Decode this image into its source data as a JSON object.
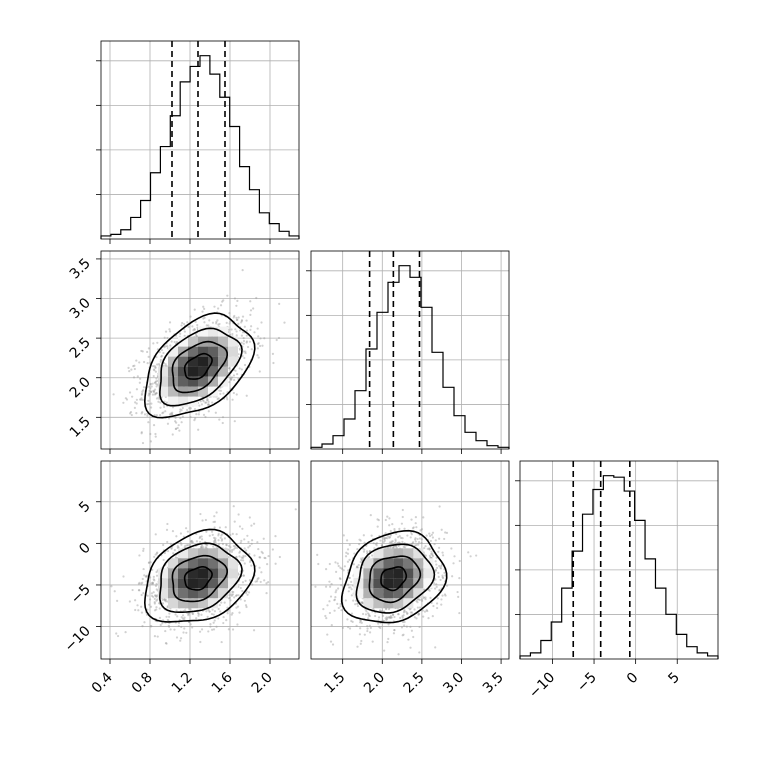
{
  "chart_data": {
    "type": "corner",
    "parameters": [
      {
        "range": [
          0.31,
          2.29
        ],
        "ticks": [
          "0.4",
          "0.8",
          "1.2",
          "1.6",
          "2.0"
        ],
        "tick_values": [
          0.4,
          0.8,
          1.2,
          1.6,
          2.0
        ],
        "quantiles": [
          1.02,
          1.28,
          1.55
        ]
      },
      {
        "range": [
          1.1,
          3.6
        ],
        "ticks": [
          "1.5",
          "2.0",
          "2.5",
          "3.0",
          "3.5"
        ],
        "tick_values": [
          1.5,
          2.0,
          2.5,
          3.0,
          3.5
        ],
        "quantiles": [
          1.84,
          2.14,
          2.47
        ]
      },
      {
        "range": [
          -13.9,
          9.9
        ],
        "ticks": [
          "−10",
          "−5",
          "0",
          "5"
        ],
        "tick_values": [
          -10,
          -5,
          0,
          5
        ],
        "quantiles": [
          -7.5,
          -4.2,
          -0.7
        ]
      }
    ],
    "histograms": [
      {
        "edges_min": 0.31,
        "edges_max": 2.29,
        "counts": [
          2,
          3,
          6,
          14,
          25,
          43,
          60,
          80,
          102,
          112,
          119,
          107,
          92,
          73,
          47,
          32,
          17,
          10,
          5,
          2
        ]
      },
      {
        "edges_min": 1.1,
        "edges_max": 3.6,
        "counts": [
          1,
          3,
          8,
          18,
          35,
          60,
          82,
          100,
          110,
          103,
          85,
          58,
          37,
          20,
          10,
          5,
          2,
          1
        ]
      },
      {
        "edges_min": -13.9,
        "edges_max": 9.9,
        "counts": [
          2,
          4,
          12,
          24,
          46,
          70,
          94,
          110,
          119,
          118,
          109,
          90,
          65,
          46,
          29,
          16,
          8,
          4,
          2
        ]
      }
    ],
    "pairs": [
      {
        "x_param": 0,
        "y_param": 1,
        "mean": [
          1.28,
          2.14
        ],
        "sd": [
          0.27,
          0.32
        ],
        "rho": 0.42
      },
      {
        "x_param": 0,
        "y_param": 2,
        "mean": [
          1.28,
          -4.2
        ],
        "sd": [
          0.27,
          2.75
        ],
        "rho": 0.25
      },
      {
        "x_param": 1,
        "y_param": 2,
        "mean": [
          2.14,
          -4.2
        ],
        "sd": [
          0.32,
          2.75
        ],
        "rho": 0.2
      }
    ],
    "contour_levels_sigma": [
      0.5,
      1.0,
      1.5,
      2.0
    ],
    "grid": true
  }
}
